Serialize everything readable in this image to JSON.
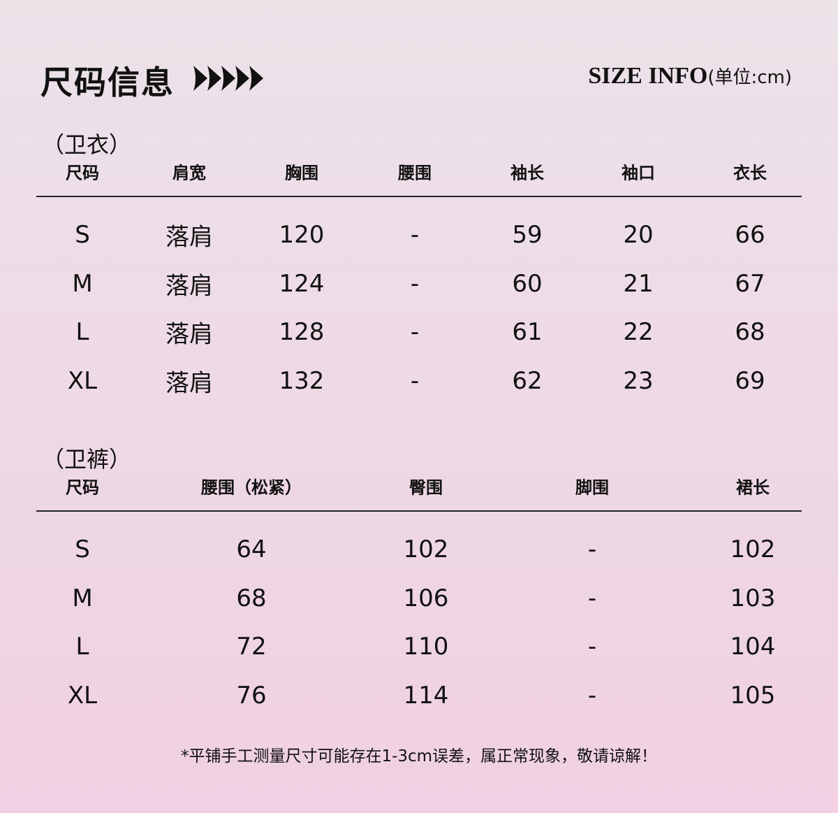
{
  "title": "尺码信息",
  "arrows_icon": "five-right-arrowheads",
  "size_info": "SIZE INFO",
  "unit": "(单位:cm)",
  "top": {
    "label": "（卫衣）",
    "headers": [
      "尺码",
      "肩宽",
      "胸围",
      "腰围",
      "袖长",
      "袖口",
      "衣长"
    ],
    "rows": [
      [
        "S",
        "落肩",
        "120",
        "-",
        "59",
        "20",
        "66"
      ],
      [
        "M",
        "落肩",
        "124",
        "-",
        "60",
        "21",
        "67"
      ],
      [
        "L",
        "落肩",
        "128",
        "-",
        "61",
        "22",
        "68"
      ],
      [
        "XL",
        "落肩",
        "132",
        "-",
        "62",
        "23",
        "69"
      ]
    ]
  },
  "bottom": {
    "label": "（卫裤）",
    "headers": [
      "尺码",
      "腰围（松紧）",
      "臀围",
      "脚围",
      "裙长"
    ],
    "rows": [
      [
        "S",
        "64",
        "102",
        "-",
        "102"
      ],
      [
        "M",
        "68",
        "106",
        "-",
        "103"
      ],
      [
        "L",
        "72",
        "110",
        "-",
        "104"
      ],
      [
        "XL",
        "76",
        "114",
        "-",
        "105"
      ]
    ]
  },
  "note": "*平铺手工测量尺寸可能存在1-3cm误差，属正常现象，敬请谅解！"
}
